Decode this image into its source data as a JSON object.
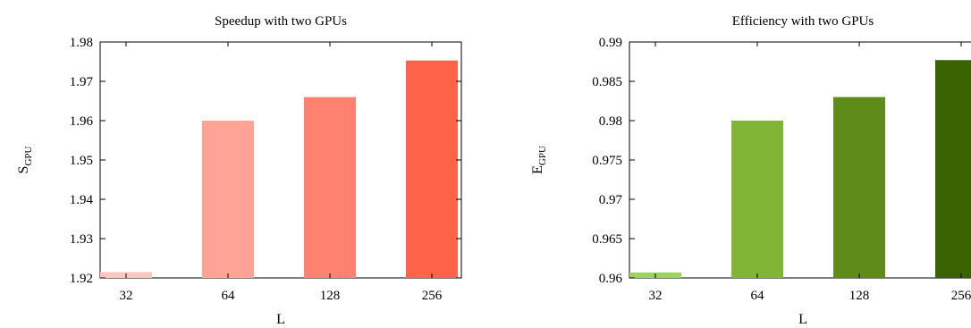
{
  "chart_data": [
    {
      "type": "bar",
      "title": "Speedup with two GPUs",
      "xlabel": "L",
      "ylabel_main": "S",
      "ylabel_sub": "GPU",
      "categories": [
        "32",
        "64",
        "128",
        "256"
      ],
      "values": [
        1.9215,
        1.96,
        1.966,
        1.9753
      ],
      "ylim": [
        1.92,
        1.98
      ],
      "yticks": [
        "1.92",
        "1.93",
        "1.94",
        "1.95",
        "1.96",
        "1.97",
        "1.98"
      ],
      "bar_colors": [
        "#ffc6c0",
        "#ffa396",
        "#ff8270",
        "#ff634a"
      ],
      "grid": false
    },
    {
      "type": "bar",
      "title": "Efficiency with two GPUs",
      "xlabel": "L",
      "ylabel_main": "E",
      "ylabel_sub": "GPU",
      "categories": [
        "32",
        "64",
        "128",
        "256"
      ],
      "values": [
        0.9607,
        0.98,
        0.983,
        0.9877
      ],
      "ylim": [
        0.96,
        0.99
      ],
      "yticks": [
        "0.96",
        "0.965",
        "0.97",
        "0.975",
        "0.98",
        "0.985",
        "0.99"
      ],
      "bar_colors": [
        "#9bd45a",
        "#80b536",
        "#5f8c18",
        "#3b6200"
      ],
      "grid": false
    }
  ]
}
